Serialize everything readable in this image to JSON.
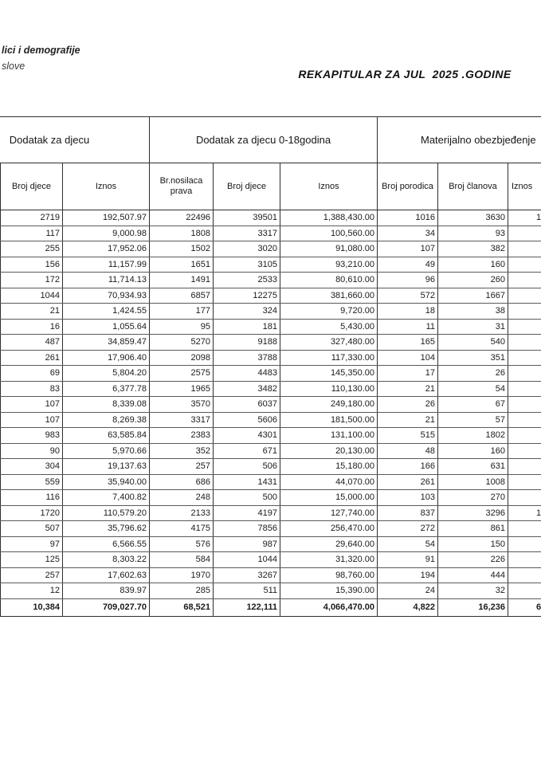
{
  "page": {
    "letterhead_line1": "lici i demografije",
    "letterhead_line2": "slove",
    "title": "REKAPITULAR ZA JUL  2025 .GODINE"
  },
  "table": {
    "groups": [
      {
        "label": "Dodatak za djecu"
      },
      {
        "label": "Dodatak za djecu 0-18godina"
      },
      {
        "label": "Materijalno obezbjeđenje"
      }
    ],
    "columns": [
      "Broj djece",
      "Iznos",
      "Br.nosilaca prava",
      "Broj djece",
      "Iznos",
      "Broj porodica",
      "Broj članova",
      "Iznos"
    ],
    "rows": [
      [
        "2719",
        "192,507.97",
        "22496",
        "39501",
        "1,388,430.00",
        "1016",
        "3630",
        "1"
      ],
      [
        "117",
        "9,000.98",
        "1808",
        "3317",
        "100,560.00",
        "34",
        "93",
        ""
      ],
      [
        "255",
        "17,952.06",
        "1502",
        "3020",
        "91,080.00",
        "107",
        "382",
        ""
      ],
      [
        "156",
        "11,157.99",
        "1651",
        "3105",
        "93,210.00",
        "49",
        "160",
        ""
      ],
      [
        "172",
        "11,714.13",
        "1491",
        "2533",
        "80,610.00",
        "96",
        "260",
        ""
      ],
      [
        "1044",
        "70,934.93",
        "6857",
        "12275",
        "381,660.00",
        "572",
        "1667",
        ""
      ],
      [
        "21",
        "1,424.55",
        "177",
        "324",
        "9,720.00",
        "18",
        "38",
        ""
      ],
      [
        "16",
        "1,055.64",
        "95",
        "181",
        "5,430.00",
        "11",
        "31",
        ""
      ],
      [
        "487",
        "34,859.47",
        "5270",
        "9188",
        "327,480.00",
        "165",
        "540",
        ""
      ],
      [
        "261",
        "17,906.40",
        "2098",
        "3788",
        "117,330.00",
        "104",
        "351",
        ""
      ],
      [
        "69",
        "5,804.20",
        "2575",
        "4483",
        "145,350.00",
        "17",
        "26",
        ""
      ],
      [
        "83",
        "6,377.78",
        "1965",
        "3482",
        "110,130.00",
        "21",
        "54",
        ""
      ],
      [
        "107",
        "8,339.08",
        "3570",
        "6037",
        "249,180.00",
        "26",
        "67",
        ""
      ],
      [
        "107",
        "8,269.38",
        "3317",
        "5606",
        "181,500.00",
        "21",
        "57",
        ""
      ],
      [
        "983",
        "63,585.84",
        "2383",
        "4301",
        "131,100.00",
        "515",
        "1802",
        ""
      ],
      [
        "90",
        "5,970.66",
        "352",
        "671",
        "20,130.00",
        "48",
        "160",
        ""
      ],
      [
        "304",
        "19,137.63",
        "257",
        "506",
        "15,180.00",
        "166",
        "631",
        ""
      ],
      [
        "559",
        "35,940.00",
        "686",
        "1431",
        "44,070.00",
        "261",
        "1008",
        ""
      ],
      [
        "116",
        "7,400.82",
        "248",
        "500",
        "15,000.00",
        "103",
        "270",
        ""
      ],
      [
        "1720",
        "110,579.20",
        "2133",
        "4197",
        "127,740.00",
        "837",
        "3296",
        "1"
      ],
      [
        "507",
        "35,796.62",
        "4175",
        "7856",
        "256,470.00",
        "272",
        "861",
        ""
      ],
      [
        "97",
        "6,566.55",
        "576",
        "987",
        "29,640.00",
        "54",
        "150",
        ""
      ],
      [
        "125",
        "8,303.22",
        "584",
        "1044",
        "31,320.00",
        "91",
        "226",
        ""
      ],
      [
        "257",
        "17,602.63",
        "1970",
        "3267",
        "98,760.00",
        "194",
        "444",
        ""
      ],
      [
        "12",
        "839.97",
        "285",
        "511",
        "15,390.00",
        "24",
        "32",
        ""
      ]
    ],
    "total_row": [
      "10,384",
      "709,027.70",
      "68,521",
      "122,111",
      "4,066,470.00",
      "4,822",
      "16,236",
      "6"
    ]
  }
}
